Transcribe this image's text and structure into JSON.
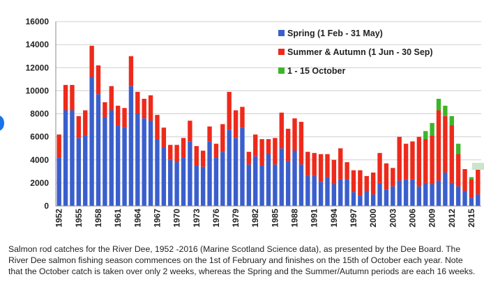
{
  "chart_data": {
    "type": "bar",
    "stacked": true,
    "title": "",
    "xlabel": "",
    "ylabel": "",
    "ylim": [
      0,
      16000
    ],
    "yticks": [
      0,
      2000,
      4000,
      6000,
      8000,
      10000,
      12000,
      14000,
      16000
    ],
    "ytick_labels": [
      "0",
      "2000",
      "4000",
      "6000",
      "8000",
      "10000",
      "12000",
      "14000",
      "16000"
    ],
    "grid": true,
    "legend_position": "top-right",
    "categories": [
      "1952",
      "1953",
      "1954",
      "1955",
      "1956",
      "1957",
      "1958",
      "1959",
      "1960",
      "1961",
      "1962",
      "1963",
      "1964",
      "1965",
      "1966",
      "1967",
      "1968",
      "1969",
      "1970",
      "1971",
      "1972",
      "1973",
      "1974",
      "1975",
      "1976",
      "1977",
      "1978",
      "1979",
      "1980",
      "1981",
      "1982",
      "1983",
      "1984",
      "1985",
      "1986",
      "1987",
      "1988",
      "1989",
      "1990",
      "1991",
      "1992",
      "1993",
      "1994",
      "1995",
      "1996",
      "1997",
      "1998",
      "1999",
      "2000",
      "2001",
      "2002",
      "2003",
      "2004",
      "2005",
      "2006",
      "2007",
      "2008",
      "2009",
      "2010",
      "2011",
      "2012",
      "2013",
      "2014",
      "2015",
      "2016"
    ],
    "xtick_labels": [
      "1952",
      "1955",
      "1958",
      "1961",
      "1964",
      "1967",
      "1970",
      "1973",
      "1976",
      "1979",
      "1982",
      "1985",
      "1988",
      "1991",
      "1994",
      "1997",
      "2000",
      "2003",
      "2006",
      "2009",
      "2012",
      "2015"
    ],
    "series": [
      {
        "name": "Spring (1 Feb - 31 May)",
        "color": "#3a5fcd",
        "values": [
          4200,
          8300,
          8300,
          5900,
          6100,
          11200,
          9700,
          7700,
          8300,
          7000,
          6800,
          10400,
          8000,
          7600,
          7400,
          5800,
          5100,
          4000,
          3800,
          4200,
          5600,
          3500,
          3400,
          5600,
          4200,
          4700,
          6600,
          5900,
          6800,
          3600,
          4300,
          3500,
          4500,
          3600,
          5000,
          3900,
          4800,
          3600,
          2600,
          2600,
          2100,
          2500,
          1900,
          2300,
          2300,
          1200,
          900,
          1300,
          1000,
          2000,
          1400,
          1700,
          2200,
          2300,
          2300,
          1700,
          2000,
          1900,
          2200,
          2900,
          2000,
          1700,
          1300,
          700,
          1000
        ]
      },
      {
        "name": "Summer & Autumn (1 Jun - 30 Sep)",
        "color": "#ee2a1b",
        "values": [
          2000,
          2200,
          2200,
          1900,
          2200,
          2700,
          2500,
          1300,
          2100,
          1700,
          1700,
          2600,
          1900,
          1700,
          2200,
          2100,
          1700,
          1300,
          1500,
          1700,
          1800,
          1700,
          1400,
          1300,
          1200,
          2400,
          3300,
          2400,
          1800,
          1100,
          1900,
          2300,
          1300,
          2300,
          3100,
          2800,
          2800,
          3700,
          2100,
          2000,
          2400,
          2000,
          2100,
          2700,
          1500,
          1900,
          2200,
          1300,
          1900,
          2600,
          2300,
          1600,
          3800,
          3100,
          3300,
          4300,
          3800,
          4200,
          6100,
          4900,
          5000,
          2800,
          1900,
          1600,
          2300
        ]
      },
      {
        "name": "1 - 15 October",
        "color": "#3cb528",
        "values": [
          0,
          0,
          0,
          0,
          0,
          0,
          0,
          0,
          0,
          0,
          0,
          0,
          0,
          0,
          0,
          0,
          0,
          0,
          0,
          0,
          0,
          0,
          0,
          0,
          0,
          0,
          0,
          0,
          0,
          0,
          0,
          0,
          0,
          0,
          0,
          0,
          0,
          0,
          0,
          0,
          0,
          0,
          0,
          0,
          0,
          0,
          0,
          0,
          0,
          0,
          0,
          0,
          0,
          0,
          0,
          0,
          700,
          1100,
          1000,
          900,
          800,
          900,
          0,
          200,
          300
        ]
      }
    ]
  },
  "caption": "Salmon rod catches for the River Dee, 1952 -2016 (Marine Scotland Science data), as presented by the Dee Board. The River Dee salmon fishing season commences on the 1st of February and finishes on the 15th of October each year. Note that the October catch is taken over only 2 weeks, whereas the Spring and the Summer/Autumn periods are each 16 weeks."
}
